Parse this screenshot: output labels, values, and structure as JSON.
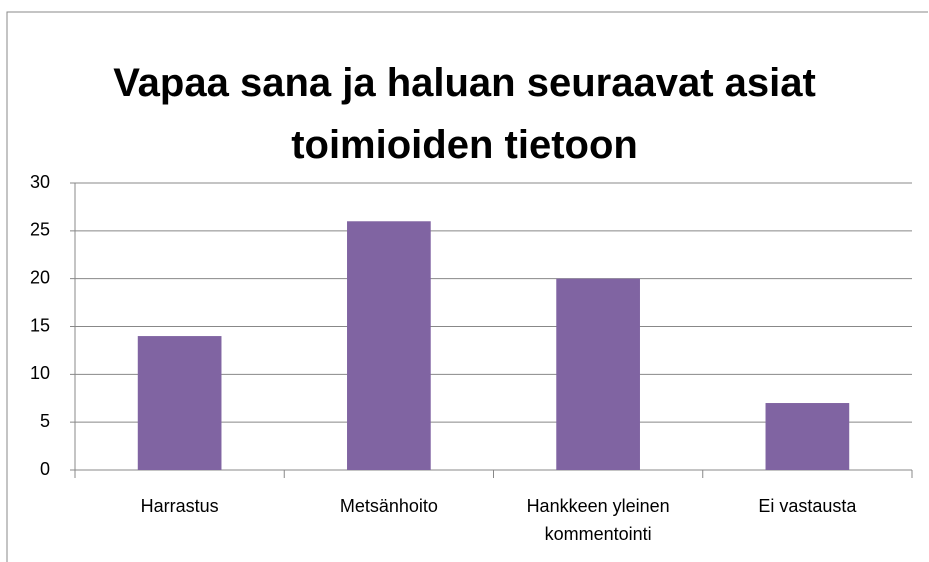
{
  "chart_data": {
    "type": "bar",
    "title": "Vapaa sana ja haluan seuraavat asiat toimioiden tietoon",
    "categories": [
      "Harrastus",
      "Metsänhoito",
      "Hankkeen yleinen kommentointi",
      "Ei vastausta"
    ],
    "values": [
      14,
      26,
      20,
      7
    ],
    "color": "#8064a2",
    "ylim": [
      0,
      30
    ],
    "yticks": [
      0,
      5,
      10,
      15,
      20,
      25,
      30
    ],
    "grid": true
  }
}
